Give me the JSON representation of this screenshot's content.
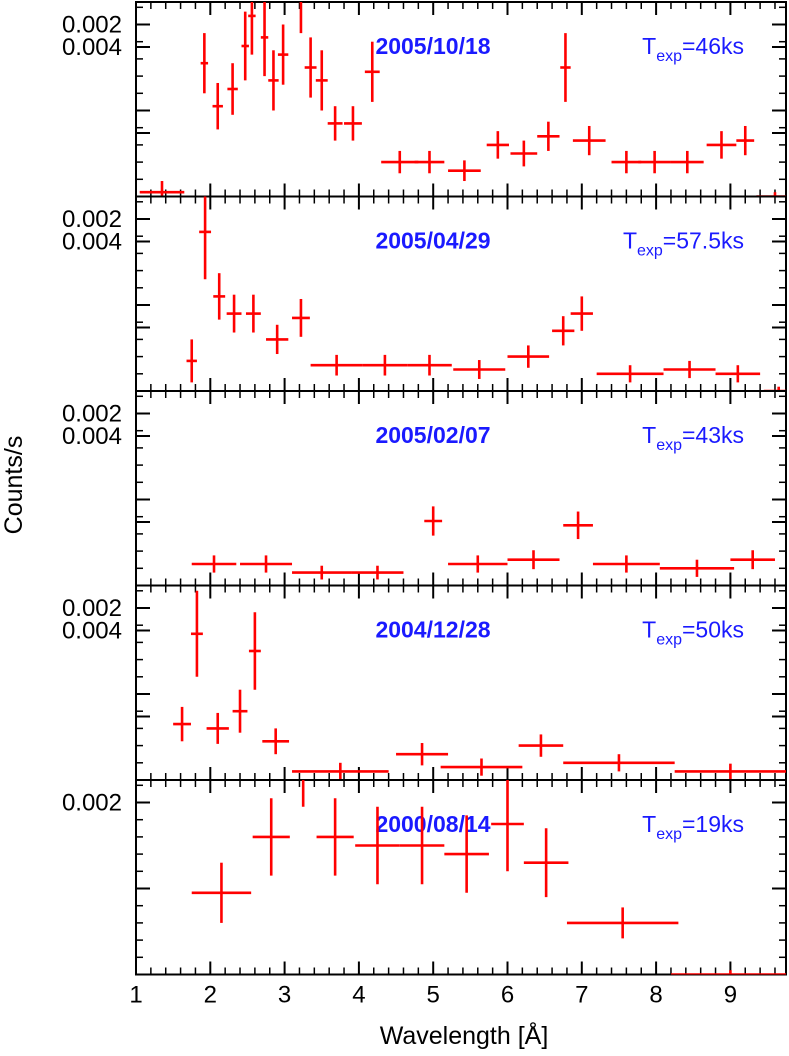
{
  "colors": {
    "data": "#ff0000",
    "date_text": "#1a1aff",
    "texp_text": "#1a1aff",
    "axes": "#000000"
  },
  "chart_data": {
    "type": "scatter",
    "style": "errorbars",
    "xlabel": "Wavelength [Å]",
    "ylabel": "Counts/s",
    "xlim": [
      1,
      9.8
    ],
    "ylim": [
      0,
      0.0042
    ],
    "x_ticks": [
      "1",
      "2",
      "3",
      "4",
      "5",
      "6",
      "7",
      "8",
      "9"
    ],
    "y_ticks": [
      "0.004",
      "0.002"
    ],
    "panels": [
      {
        "date": "2005/10/18",
        "texp_symbol": "T",
        "texp_sub": "exp",
        "texp_value": "=46ks",
        "points": [
          {
            "x": 1.35,
            "dx": 0.3,
            "y": 5e-05,
            "dy": 0.00013
          },
          {
            "x": 1.78,
            "dx": 0.05,
            "y": 0.0037,
            "dy": 0.00085
          },
          {
            "x": 1.92,
            "dx": 0.05,
            "y": 0.00155,
            "dy": 0.00035
          },
          {
            "x": 2.1,
            "dx": 0.07,
            "y": 0.00105,
            "dy": 0.00027
          },
          {
            "x": 2.3,
            "dx": 0.07,
            "y": 0.00125,
            "dy": 0.0003
          },
          {
            "x": 2.47,
            "dx": 0.05,
            "y": 0.00175,
            "dy": 0.0004
          },
          {
            "x": 2.56,
            "dx": 0.05,
            "y": 0.0021,
            "dy": 0.00045
          },
          {
            "x": 2.64,
            "dx": 0.05,
            "y": 0.0029,
            "dy": 0.0005
          },
          {
            "x": 2.73,
            "dx": 0.05,
            "y": 0.00185,
            "dy": 0.00045
          },
          {
            "x": 2.85,
            "dx": 0.07,
            "y": 0.00135,
            "dy": 0.00035
          },
          {
            "x": 2.98,
            "dx": 0.07,
            "y": 0.00165,
            "dy": 0.00035
          },
          {
            "x": 3.12,
            "dx": 0.07,
            "y": 0.00315,
            "dy": 0.00075
          },
          {
            "x": 3.22,
            "dx": 0.05,
            "y": 0.00235,
            "dy": 0.00045
          },
          {
            "x": 3.35,
            "dx": 0.08,
            "y": 0.0015,
            "dy": 0.00035
          },
          {
            "x": 3.5,
            "dx": 0.08,
            "y": 0.00135,
            "dy": 0.00035
          },
          {
            "x": 3.68,
            "dx": 0.1,
            "y": 0.00085,
            "dy": 0.0002
          },
          {
            "x": 3.92,
            "dx": 0.12,
            "y": 0.00085,
            "dy": 0.0002
          },
          {
            "x": 4.18,
            "dx": 0.1,
            "y": 0.00145,
            "dy": 0.00035
          },
          {
            "x": 4.55,
            "dx": 0.25,
            "y": 0.0004,
            "dy": 0.00013
          },
          {
            "x": 4.95,
            "dx": 0.2,
            "y": 0.0004,
            "dy": 0.00013
          },
          {
            "x": 5.42,
            "dx": 0.22,
            "y": 0.0003,
            "dy": 0.00012
          },
          {
            "x": 5.87,
            "dx": 0.15,
            "y": 0.0006,
            "dy": 0.00016
          },
          {
            "x": 6.22,
            "dx": 0.18,
            "y": 0.0005,
            "dy": 0.00015
          },
          {
            "x": 6.55,
            "dx": 0.15,
            "y": 0.0007,
            "dy": 0.00017
          },
          {
            "x": 6.78,
            "dx": 0.07,
            "y": 0.0015,
            "dy": 0.0004
          },
          {
            "x": 7.1,
            "dx": 0.22,
            "y": 0.00065,
            "dy": 0.00017
          },
          {
            "x": 7.6,
            "dx": 0.2,
            "y": 0.0004,
            "dy": 0.00013
          },
          {
            "x": 7.98,
            "dx": 0.22,
            "y": 0.0004,
            "dy": 0.00013
          },
          {
            "x": 8.42,
            "dx": 0.22,
            "y": 0.0004,
            "dy": 0.00013
          },
          {
            "x": 8.88,
            "dx": 0.2,
            "y": 0.0006,
            "dy": 0.00016
          },
          {
            "x": 9.2,
            "dx": 0.12,
            "y": 0.00065,
            "dy": 0.00017
          },
          {
            "x": 9.6,
            "dx": 0.25,
            "y": 0.0,
            "dy": 5e-05
          }
        ]
      },
      {
        "date": "2005/04/29",
        "texp_symbol": "T",
        "texp_sub": "exp",
        "texp_value": "=57.5ks",
        "points": [
          {
            "x": 1.75,
            "dx": 0.07,
            "y": 0.00035,
            "dy": 0.00025
          },
          {
            "x": 1.93,
            "dx": 0.08,
            "y": 0.00185,
            "dy": 0.00055
          },
          {
            "x": 2.12,
            "dx": 0.08,
            "y": 0.0011,
            "dy": 0.00027
          },
          {
            "x": 2.32,
            "dx": 0.1,
            "y": 0.0009,
            "dy": 0.00022
          },
          {
            "x": 2.58,
            "dx": 0.1,
            "y": 0.0009,
            "dy": 0.00022
          },
          {
            "x": 2.9,
            "dx": 0.15,
            "y": 0.0006,
            "dy": 0.00017
          },
          {
            "x": 3.22,
            "dx": 0.12,
            "y": 0.00085,
            "dy": 0.00022
          },
          {
            "x": 3.7,
            "dx": 0.35,
            "y": 0.0003,
            "dy": 0.00012
          },
          {
            "x": 4.35,
            "dx": 0.3,
            "y": 0.0003,
            "dy": 0.00012
          },
          {
            "x": 4.95,
            "dx": 0.3,
            "y": 0.0003,
            "dy": 0.00012
          },
          {
            "x": 5.62,
            "dx": 0.35,
            "y": 0.00025,
            "dy": 0.00011
          },
          {
            "x": 6.28,
            "dx": 0.28,
            "y": 0.0004,
            "dy": 0.00013
          },
          {
            "x": 6.75,
            "dx": 0.15,
            "y": 0.0007,
            "dy": 0.00017
          },
          {
            "x": 7.0,
            "dx": 0.15,
            "y": 0.0009,
            "dy": 0.0002
          },
          {
            "x": 7.65,
            "dx": 0.45,
            "y": 0.0002,
            "dy": 0.0001
          },
          {
            "x": 8.45,
            "dx": 0.35,
            "y": 0.00025,
            "dy": 0.0001
          },
          {
            "x": 9.1,
            "dx": 0.3,
            "y": 0.0002,
            "dy": 0.0001
          },
          {
            "x": 9.65,
            "dx": 0.2,
            "y": 0.0,
            "dy": 5e-05
          }
        ]
      },
      {
        "date": "2005/02/07",
        "texp_symbol": "T",
        "texp_sub": "exp",
        "texp_value": "=43ks",
        "points": [
          {
            "x": 2.05,
            "dx": 0.3,
            "y": 0.00025,
            "dy": 0.0001
          },
          {
            "x": 2.75,
            "dx": 0.35,
            "y": 0.00025,
            "dy": 0.0001
          },
          {
            "x": 3.5,
            "dx": 0.4,
            "y": 0.00015,
            "dy": 8e-05
          },
          {
            "x": 4.25,
            "dx": 0.35,
            "y": 0.00015,
            "dy": 8e-05
          },
          {
            "x": 5.0,
            "dx": 0.12,
            "y": 0.00075,
            "dy": 0.00017
          },
          {
            "x": 5.6,
            "dx": 0.4,
            "y": 0.00025,
            "dy": 0.0001
          },
          {
            "x": 6.35,
            "dx": 0.35,
            "y": 0.0003,
            "dy": 0.00011
          },
          {
            "x": 6.95,
            "dx": 0.2,
            "y": 0.0007,
            "dy": 0.00016
          },
          {
            "x": 7.6,
            "dx": 0.45,
            "y": 0.00025,
            "dy": 0.0001
          },
          {
            "x": 8.55,
            "dx": 0.5,
            "y": 0.0002,
            "dy": 0.0001
          },
          {
            "x": 9.3,
            "dx": 0.3,
            "y": 0.0003,
            "dy": 0.00011
          }
        ]
      },
      {
        "date": "2004/12/28",
        "texp_symbol": "T",
        "texp_sub": "exp",
        "texp_value": "=50ks",
        "points": [
          {
            "x": 1.62,
            "dx": 0.12,
            "y": 0.00065,
            "dy": 0.0002
          },
          {
            "x": 1.82,
            "dx": 0.08,
            "y": 0.0017,
            "dy": 0.0005
          },
          {
            "x": 2.1,
            "dx": 0.15,
            "y": 0.0006,
            "dy": 0.00018
          },
          {
            "x": 2.4,
            "dx": 0.1,
            "y": 0.0008,
            "dy": 0.00025
          },
          {
            "x": 2.6,
            "dx": 0.08,
            "y": 0.0015,
            "dy": 0.00045
          },
          {
            "x": 2.88,
            "dx": 0.18,
            "y": 0.00045,
            "dy": 0.00015
          },
          {
            "x": 3.75,
            "dx": 0.65,
            "y": 0.0001,
            "dy": 0.0001
          },
          {
            "x": 4.85,
            "dx": 0.35,
            "y": 0.0003,
            "dy": 0.00013
          },
          {
            "x": 5.65,
            "dx": 0.55,
            "y": 0.00015,
            "dy": 0.0001
          },
          {
            "x": 6.45,
            "dx": 0.3,
            "y": 0.0004,
            "dy": 0.00013
          },
          {
            "x": 7.5,
            "dx": 0.75,
            "y": 0.0002,
            "dy": 0.0001
          },
          {
            "x": 9.0,
            "dx": 0.75,
            "y": 0.0001,
            "dy": 9e-05
          }
        ]
      },
      {
        "date": "2000/08/14",
        "texp_symbol": "T",
        "texp_sub": "exp",
        "texp_value": "=19ks",
        "points": [
          {
            "x": 2.15,
            "dx": 0.4,
            "y": 0.00095,
            "dy": 0.00035
          },
          {
            "x": 2.82,
            "dx": 0.25,
            "y": 0.0016,
            "dy": 0.00045
          },
          {
            "x": 3.25,
            "dx": 0.18,
            "y": 0.0028,
            "dy": 0.00085
          },
          {
            "x": 3.68,
            "dx": 0.25,
            "y": 0.0016,
            "dy": 0.00045
          },
          {
            "x": 4.25,
            "dx": 0.3,
            "y": 0.0015,
            "dy": 0.00045
          },
          {
            "x": 4.85,
            "dx": 0.3,
            "y": 0.0015,
            "dy": 0.00045
          },
          {
            "x": 5.45,
            "dx": 0.3,
            "y": 0.0014,
            "dy": 0.00045
          },
          {
            "x": 6.0,
            "dx": 0.22,
            "y": 0.00175,
            "dy": 0.00055
          },
          {
            "x": 6.52,
            "dx": 0.3,
            "y": 0.0013,
            "dy": 0.0004
          },
          {
            "x": 7.55,
            "dx": 0.75,
            "y": 0.0006,
            "dy": 0.00018
          },
          {
            "x": 9.0,
            "dx": 0.8,
            "y": 0.0,
            "dy": 5e-05
          }
        ]
      }
    ]
  }
}
